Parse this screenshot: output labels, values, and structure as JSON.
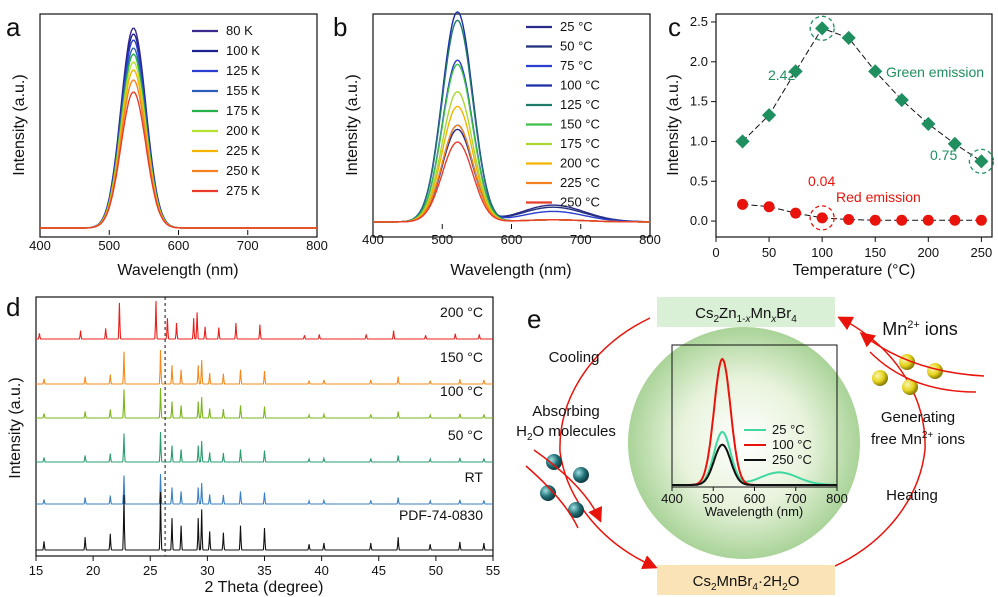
{
  "panel_labels": [
    "a",
    "b",
    "c",
    "d",
    "e"
  ],
  "chart_data": [
    {
      "panel": "a",
      "type": "line",
      "xlabel": "Wavelength (nm)",
      "ylabel": "Intensity (a.u.)",
      "xlim": [
        400,
        800
      ],
      "xticks": [
        "400",
        "500",
        "600",
        "700",
        "800"
      ],
      "peak_nm": 535,
      "series": [
        {
          "name": "80 K",
          "peak": 1.0,
          "color": "#3b2a8c"
        },
        {
          "name": "100 K",
          "peak": 0.97,
          "color": "#1c2390"
        },
        {
          "name": "125 K",
          "peak": 0.94,
          "color": "#2a3ed0"
        },
        {
          "name": "155 K",
          "peak": 0.9,
          "color": "#2e5fb8"
        },
        {
          "name": "175 K",
          "peak": 0.87,
          "color": "#28b04a"
        },
        {
          "name": "200 K",
          "peak": 0.83,
          "color": "#b8e030"
        },
        {
          "name": "225 K",
          "peak": 0.79,
          "color": "#f2b400"
        },
        {
          "name": "250 K",
          "peak": 0.74,
          "color": "#f58220"
        },
        {
          "name": "275 K",
          "peak": 0.68,
          "color": "#e83c2c"
        }
      ]
    },
    {
      "panel": "b",
      "type": "line",
      "xlabel": "Wavelength (nm)",
      "ylabel": "Intensity (a.u.)",
      "xlim": [
        400,
        800
      ],
      "xticks": [
        "400",
        "500",
        "600",
        "700",
        "800"
      ],
      "peak_nm": 522,
      "series": [
        {
          "name": "25 °C",
          "peak": 0.44,
          "red": 0.08,
          "color": "#2a2a8a"
        },
        {
          "name": "50 °C",
          "peak": 0.46,
          "red": 0.07,
          "color": "#1f2f7a"
        },
        {
          "name": "75 °C",
          "peak": 0.77,
          "red": 0.05,
          "color": "#2a3ed0"
        },
        {
          "name": "100 °C",
          "peak": 1.0,
          "red": 0.01,
          "color": "#1a2ca8"
        },
        {
          "name": "125 °C",
          "peak": 0.96,
          "red": 0.01,
          "color": "#1f7a6a"
        },
        {
          "name": "150 °C",
          "peak": 0.75,
          "red": 0.01,
          "color": "#3fbf4a"
        },
        {
          "name": "175 °C",
          "peak": 0.62,
          "red": 0.01,
          "color": "#a8d830"
        },
        {
          "name": "200 °C",
          "peak": 0.55,
          "red": 0.01,
          "color": "#f2b400"
        },
        {
          "name": "225 °C",
          "peak": 0.46,
          "red": 0.01,
          "color": "#f58220"
        },
        {
          "name": "250 °C",
          "peak": 0.38,
          "red": 0.01,
          "color": "#e83c2c"
        }
      ]
    },
    {
      "panel": "c",
      "type": "scatter",
      "xlabel": "Temperature (°C)",
      "ylabel": "Intensity (a.u.)",
      "xlim": [
        0,
        260
      ],
      "ylim": [
        -0.2,
        2.6
      ],
      "xticks": [
        "0",
        "50",
        "100",
        "150",
        "200",
        "250"
      ],
      "yticks": [
        "0.0",
        "0.5",
        "1.0",
        "1.5",
        "2.0",
        "2.5"
      ],
      "x": [
        25,
        50,
        75,
        100,
        125,
        150,
        175,
        200,
        225,
        250
      ],
      "series": [
        {
          "name": "Green emission",
          "color": "#1f8f5f",
          "values": [
            1.0,
            1.33,
            1.88,
            2.42,
            2.3,
            1.88,
            1.52,
            1.22,
            0.97,
            0.75
          ]
        },
        {
          "name": "Red emission",
          "color": "#e8140c",
          "values": [
            0.21,
            0.18,
            0.1,
            0.04,
            0.02,
            0.01,
            0.01,
            0.01,
            0.01,
            0.01
          ]
        }
      ],
      "annotations": [
        {
          "text": "2.42",
          "color": "#1f8f5f"
        },
        {
          "text": "0.75",
          "color": "#1f8f5f"
        },
        {
          "text": "0.04",
          "color": "#e8140c"
        }
      ]
    },
    {
      "panel": "d",
      "type": "line",
      "xlabel": "2 Theta (degree)",
      "ylabel": "Intensity (a.u.)",
      "xlim": [
        15,
        55
      ],
      "xticks": [
        "15",
        "20",
        "25",
        "30",
        "35",
        "40",
        "45",
        "50",
        "55"
      ],
      "reference_line_x": 26.3,
      "series": [
        {
          "name": "200 °C",
          "color": "#e8201c"
        },
        {
          "name": "150 °C",
          "color": "#f58a1c"
        },
        {
          "name": "100 °C",
          "color": "#7ab51d"
        },
        {
          "name": "50 °C",
          "color": "#2a9d6e"
        },
        {
          "name": "RT",
          "color": "#3a7fc1"
        },
        {
          "name": "PDF-74-0830",
          "color": "#111111"
        }
      ],
      "peaks_2theta": [
        15.7,
        19.3,
        21.5,
        22.7,
        25.9,
        26.9,
        27.7,
        29.2,
        29.5,
        30.2,
        31.4,
        32.9,
        35.0,
        38.9,
        40.2,
        44.3,
        46.7,
        49.5,
        52.1,
        54.2
      ],
      "peak_heights": [
        0.15,
        0.22,
        0.28,
        0.95,
        1.0,
        0.55,
        0.42,
        0.55,
        0.7,
        0.32,
        0.3,
        0.42,
        0.38,
        0.1,
        0.12,
        0.12,
        0.22,
        0.1,
        0.14,
        0.12
      ]
    },
    {
      "panel": "e-inset",
      "type": "line",
      "xlabel": "Wavelength (nm)",
      "xlim": [
        400,
        800
      ],
      "xticks": [
        "400",
        "500",
        "600",
        "700",
        "800"
      ],
      "series": [
        {
          "name": "25 °C",
          "peak": 0.42,
          "red": 0.1,
          "color": "#3fd8a0"
        },
        {
          "name": "100 °C",
          "peak": 1.0,
          "red": 0.0,
          "color": "#e8140c"
        },
        {
          "name": "250 °C",
          "peak": 0.32,
          "red": 0.0,
          "color": "#111111"
        }
      ]
    }
  ],
  "schematic": {
    "top_box_html": "Cs<sub>2</sub>Zn<sub>1-<i>x</i></sub>Mn<sub><i>x</i></sub>Br<sub>4</sub>",
    "top_box_parts": [
      "Cs",
      "2",
      "Zn",
      "1-",
      "x",
      "Mn",
      "x",
      "Br",
      "4"
    ],
    "bottom_box_parts": [
      "Cs",
      "2",
      "MnBr",
      "4",
      "·2H",
      "2",
      "O"
    ],
    "cooling": "Cooling",
    "absorbing_line1": "Absorbing",
    "absorbing_line2_parts": [
      "H",
      "2",
      "O molecules"
    ],
    "mn_ions_parts": [
      "Mn",
      "2+",
      " ions"
    ],
    "generating_line1": "Generating",
    "generating_line2_parts": [
      "free Mn",
      "2+",
      " ions"
    ],
    "heating": "Heating",
    "colors": {
      "top_box": "#d9efd6",
      "bottom_box": "#fbe3b8",
      "arrow": "#e8140c",
      "teal_ball": "#1f6e74",
      "yellow_ball": "#e4d21a"
    }
  }
}
